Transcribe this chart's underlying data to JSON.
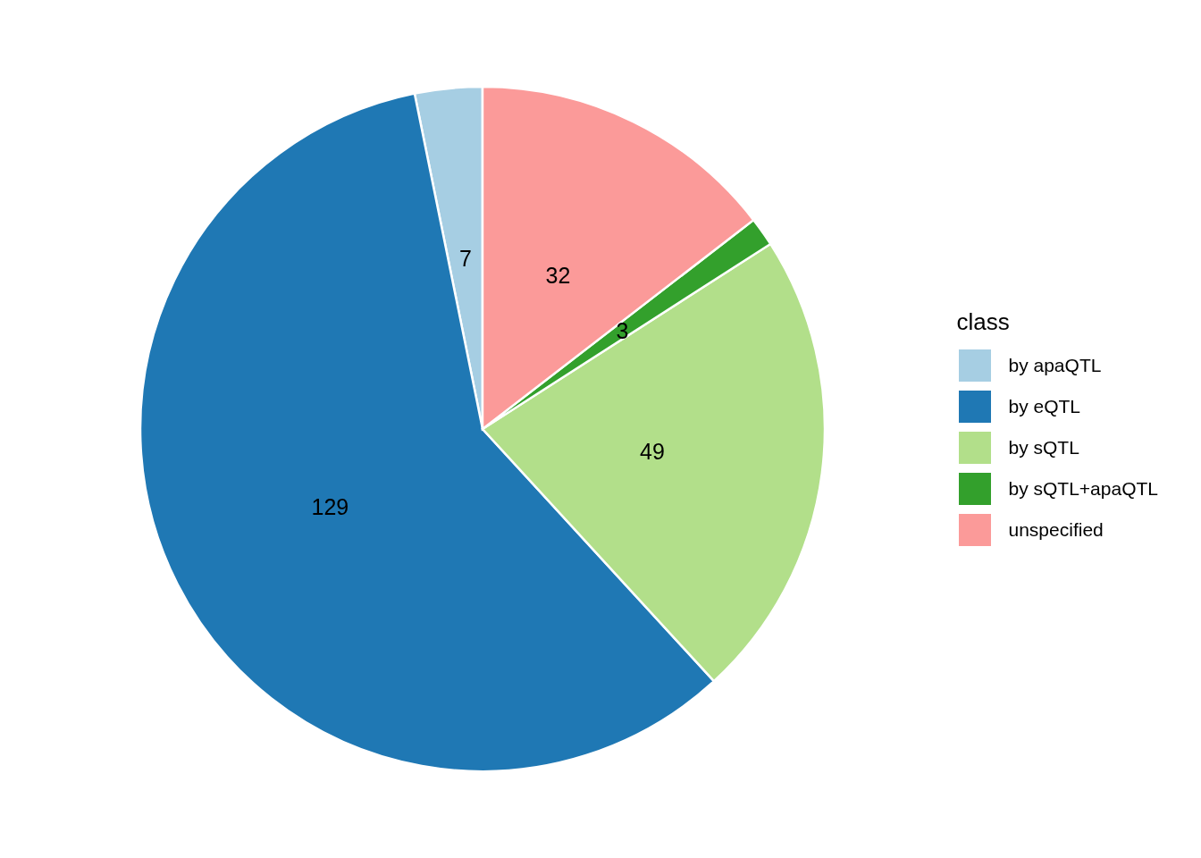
{
  "chart_data": {
    "type": "pie",
    "legend_title": "class",
    "categories": [
      "by apaQTL",
      "by eQTL",
      "by sQTL",
      "by sQTL+apaQTL",
      "unspecified"
    ],
    "values": [
      7,
      129,
      49,
      3,
      32
    ],
    "colors": [
      "#a6cee3",
      "#1f78b4",
      "#b2df8a",
      "#33a02c",
      "#fb9a99"
    ],
    "data_labels": true,
    "legend": "right"
  }
}
